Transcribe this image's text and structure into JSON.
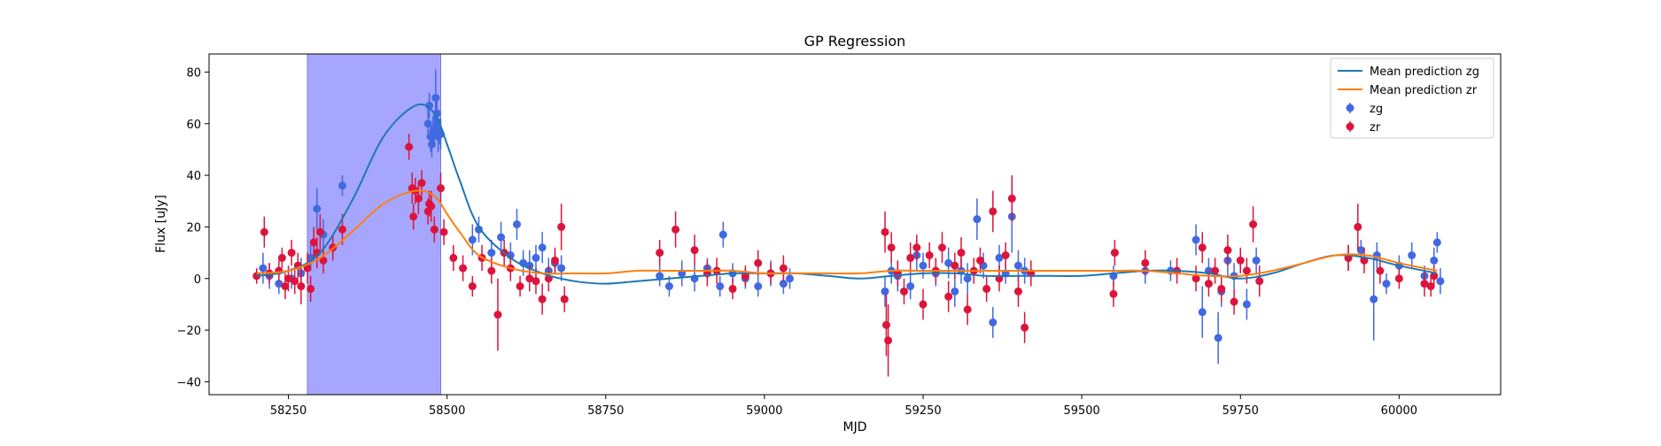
{
  "chart_data": {
    "type": "scatter",
    "title": "GP Regression",
    "xlabel": "MJD",
    "ylabel": "Flux [uJy]",
    "xlim": [
      58125,
      60160
    ],
    "ylim": [
      -45,
      87
    ],
    "x_ticks": [
      58250,
      58500,
      58750,
      59000,
      59250,
      59500,
      59750,
      60000
    ],
    "x_tick_labels": [
      "58250",
      "58500",
      "58750",
      "59000",
      "59250",
      "59500",
      "59750",
      "60000"
    ],
    "y_ticks": [
      -40,
      -20,
      0,
      20,
      40,
      60,
      80
    ],
    "y_tick_labels": [
      "−40",
      "−20",
      "0",
      "20",
      "40",
      "60",
      "80"
    ],
    "grid": false,
    "legend_position": "top-right",
    "shaded_region": {
      "x_start": 58280,
      "x_end": 58490,
      "color": "#a6a6ff"
    },
    "colors": {
      "mean_zg": "#1f77b4",
      "mean_zr": "#ff7f0e",
      "zg": "#4169e1",
      "zr": "#dc143c",
      "shade": "#a6a6ff"
    },
    "legend": [
      {
        "label": "Mean prediction zg",
        "kind": "line",
        "color": "#1f77b4"
      },
      {
        "label": "Mean prediction zr",
        "kind": "line",
        "color": "#ff7f0e"
      },
      {
        "label": "zg",
        "kind": "errorbar",
        "color": "#4169e1"
      },
      {
        "label": "zr",
        "kind": "errorbar",
        "color": "#dc143c"
      }
    ],
    "lines": [
      {
        "name": "Mean prediction zg",
        "color": "#1f77b4",
        "x": [
          58200,
          58250,
          58300,
          58350,
          58400,
          58450,
          58480,
          58500,
          58520,
          58550,
          58600,
          58650,
          58700,
          58750,
          58800,
          58850,
          58900,
          58950,
          59000,
          59050,
          59100,
          59150,
          59200,
          59250,
          59300,
          59350,
          59400,
          59450,
          59500,
          59550,
          59600,
          59650,
          59700,
          59750,
          59800,
          59850,
          59900,
          59950,
          60000,
          60060
        ],
        "y": [
          1,
          3,
          10,
          30,
          55,
          67,
          64,
          52,
          38,
          20,
          8,
          2,
          -1,
          -2,
          -1,
          0,
          1,
          2,
          2,
          2,
          1,
          0,
          1,
          2,
          2,
          1,
          1,
          1,
          1,
          2,
          3,
          3,
          2,
          0,
          2,
          6,
          9,
          8,
          5,
          2
        ]
      },
      {
        "name": "Mean prediction zr",
        "color": "#ff7f0e",
        "x": [
          58200,
          58250,
          58300,
          58350,
          58400,
          58450,
          58480,
          58500,
          58520,
          58550,
          58600,
          58650,
          58700,
          58750,
          58800,
          58850,
          58900,
          58950,
          59000,
          59050,
          59100,
          59150,
          59200,
          59250,
          59300,
          59350,
          59400,
          59450,
          59500,
          59550,
          59600,
          59650,
          59700,
          59750,
          59800,
          59850,
          59900,
          59950,
          60000,
          60060
        ],
        "y": [
          2,
          3,
          8,
          18,
          29,
          34,
          32,
          25,
          18,
          9,
          4,
          2,
          2,
          2,
          3,
          3,
          3,
          3,
          2,
          2,
          2,
          2,
          3,
          3,
          3,
          3,
          3,
          3,
          3,
          3,
          3,
          2,
          1,
          1,
          3,
          6,
          9,
          9,
          6,
          3
        ]
      }
    ],
    "series": [
      {
        "name": "zg",
        "color": "#4169e1",
        "points": [
          [
            58210,
            4,
            6
          ],
          [
            58220,
            1,
            5
          ],
          [
            58235,
            -2,
            4
          ],
          [
            58255,
            0,
            4
          ],
          [
            58270,
            2,
            6
          ],
          [
            58285,
            8,
            5
          ],
          [
            58295,
            27,
            8
          ],
          [
            58305,
            17,
            6
          ],
          [
            58320,
            12,
            5
          ],
          [
            58335,
            36,
            4
          ],
          [
            58470,
            60,
            6
          ],
          [
            58472,
            67,
            5
          ],
          [
            58474,
            55,
            6
          ],
          [
            58476,
            52,
            5
          ],
          [
            58478,
            57,
            6
          ],
          [
            58480,
            58,
            5
          ],
          [
            58482,
            70,
            11
          ],
          [
            58484,
            64,
            7
          ],
          [
            58486,
            55,
            6
          ],
          [
            58488,
            57,
            5
          ],
          [
            58490,
            56,
            6
          ],
          [
            58540,
            15,
            6
          ],
          [
            58550,
            19,
            5
          ],
          [
            58570,
            10,
            5
          ],
          [
            58585,
            16,
            6
          ],
          [
            58600,
            9,
            5
          ],
          [
            58610,
            21,
            6
          ],
          [
            58620,
            6,
            5
          ],
          [
            58630,
            5,
            6
          ],
          [
            58640,
            8,
            5
          ],
          [
            58650,
            12,
            6
          ],
          [
            58660,
            3,
            5
          ],
          [
            58670,
            6,
            4
          ],
          [
            58680,
            4,
            5
          ],
          [
            58835,
            1,
            4
          ],
          [
            58850,
            -3,
            4
          ],
          [
            58870,
            2,
            5
          ],
          [
            58890,
            0,
            5
          ],
          [
            58910,
            4,
            4
          ],
          [
            58930,
            -3,
            4
          ],
          [
            58935,
            17,
            5
          ],
          [
            58950,
            2,
            4
          ],
          [
            58970,
            0,
            4
          ],
          [
            58990,
            -3,
            4
          ],
          [
            59010,
            2,
            5
          ],
          [
            59030,
            -2,
            4
          ],
          [
            59040,
            0,
            4
          ],
          [
            59190,
            -5,
            6
          ],
          [
            59200,
            3,
            5
          ],
          [
            59210,
            1,
            6
          ],
          [
            59230,
            -3,
            5
          ],
          [
            59240,
            9,
            6
          ],
          [
            59250,
            5,
            5
          ],
          [
            59270,
            2,
            5
          ],
          [
            59290,
            6,
            6
          ],
          [
            59300,
            -5,
            6
          ],
          [
            59310,
            3,
            5
          ],
          [
            59320,
            0,
            6
          ],
          [
            59335,
            23,
            8
          ],
          [
            59345,
            5,
            5
          ],
          [
            59360,
            -17,
            6
          ],
          [
            59370,
            8,
            5
          ],
          [
            59380,
            2,
            4
          ],
          [
            59390,
            24,
            14
          ],
          [
            59400,
            5,
            6
          ],
          [
            59410,
            3,
            5
          ],
          [
            59550,
            1,
            4
          ],
          [
            59600,
            3,
            5
          ],
          [
            59640,
            3,
            4
          ],
          [
            59680,
            15,
            6
          ],
          [
            59690,
            -13,
            10
          ],
          [
            59700,
            3,
            5
          ],
          [
            59715,
            -23,
            10
          ],
          [
            59720,
            -5,
            6
          ],
          [
            59730,
            7,
            6
          ],
          [
            59740,
            1,
            5
          ],
          [
            59760,
            -10,
            6
          ],
          [
            59775,
            7,
            5
          ],
          [
            59920,
            8,
            5
          ],
          [
            59940,
            11,
            4
          ],
          [
            59960,
            -8,
            16
          ],
          [
            59965,
            9,
            5
          ],
          [
            59980,
            -2,
            4
          ],
          [
            60000,
            5,
            4
          ],
          [
            60020,
            9,
            5
          ],
          [
            60040,
            1,
            4
          ],
          [
            60055,
            7,
            5
          ],
          [
            60060,
            14,
            4
          ],
          [
            60065,
            -1,
            5
          ]
        ]
      },
      {
        "name": "zr",
        "color": "#dc143c",
        "points": [
          [
            58200,
            1,
            3
          ],
          [
            58212,
            18,
            6
          ],
          [
            58220,
            2,
            4
          ],
          [
            58235,
            3,
            4
          ],
          [
            58240,
            8,
            4
          ],
          [
            58245,
            -3,
            5
          ],
          [
            58250,
            0,
            5
          ],
          [
            58255,
            10,
            5
          ],
          [
            58260,
            -1,
            5
          ],
          [
            58265,
            5,
            5
          ],
          [
            58270,
            -3,
            7
          ],
          [
            58280,
            4,
            6
          ],
          [
            58285,
            -4,
            5
          ],
          [
            58290,
            14,
            6
          ],
          [
            58295,
            10,
            6
          ],
          [
            58300,
            18,
            7
          ],
          [
            58305,
            7,
            5
          ],
          [
            58320,
            12,
            5
          ],
          [
            58335,
            19,
            6
          ],
          [
            58440,
            51,
            5
          ],
          [
            58445,
            35,
            6
          ],
          [
            58447,
            24,
            5
          ],
          [
            58450,
            34,
            5
          ],
          [
            58455,
            31,
            6
          ],
          [
            58460,
            37,
            5
          ],
          [
            58470,
            26,
            5
          ],
          [
            58472,
            29,
            5
          ],
          [
            58475,
            28,
            6
          ],
          [
            58480,
            19,
            5
          ],
          [
            58490,
            35,
            6
          ],
          [
            58495,
            18,
            5
          ],
          [
            58510,
            8,
            5
          ],
          [
            58525,
            4,
            5
          ],
          [
            58540,
            -3,
            4
          ],
          [
            58555,
            8,
            5
          ],
          [
            58570,
            3,
            5
          ],
          [
            58580,
            -14,
            14
          ],
          [
            58590,
            10,
            5
          ],
          [
            58600,
            4,
            5
          ],
          [
            58615,
            -3,
            4
          ],
          [
            58630,
            0,
            5
          ],
          [
            58640,
            -1,
            5
          ],
          [
            58650,
            -8,
            6
          ],
          [
            58660,
            0,
            5
          ],
          [
            58670,
            7,
            5
          ],
          [
            58680,
            20,
            9
          ],
          [
            58685,
            -8,
            5
          ],
          [
            58835,
            10,
            5
          ],
          [
            58860,
            19,
            7
          ],
          [
            58890,
            11,
            6
          ],
          [
            58910,
            2,
            5
          ],
          [
            58925,
            3,
            5
          ],
          [
            58950,
            -4,
            4
          ],
          [
            58970,
            1,
            4
          ],
          [
            58990,
            6,
            5
          ],
          [
            59010,
            2,
            4
          ],
          [
            59030,
            4,
            5
          ],
          [
            59190,
            18,
            8
          ],
          [
            59192,
            -18,
            12
          ],
          [
            59195,
            -24,
            14
          ],
          [
            59200,
            12,
            6
          ],
          [
            59210,
            2,
            5
          ],
          [
            59220,
            -5,
            5
          ],
          [
            59230,
            8,
            6
          ],
          [
            59240,
            12,
            5
          ],
          [
            59250,
            -10,
            6
          ],
          [
            59260,
            9,
            5
          ],
          [
            59270,
            3,
            5
          ],
          [
            59280,
            12,
            6
          ],
          [
            59290,
            -7,
            6
          ],
          [
            59300,
            5,
            5
          ],
          [
            59310,
            10,
            6
          ],
          [
            59320,
            -12,
            6
          ],
          [
            59330,
            3,
            5
          ],
          [
            59340,
            7,
            5
          ],
          [
            59350,
            -4,
            5
          ],
          [
            59360,
            26,
            8
          ],
          [
            59370,
            0,
            5
          ],
          [
            59380,
            9,
            5
          ],
          [
            59390,
            31,
            9
          ],
          [
            59400,
            -5,
            6
          ],
          [
            59410,
            -19,
            6
          ],
          [
            59420,
            2,
            5
          ],
          [
            59550,
            -6,
            5
          ],
          [
            59552,
            10,
            5
          ],
          [
            59600,
            6,
            5
          ],
          [
            59650,
            3,
            5
          ],
          [
            59680,
            0,
            5
          ],
          [
            59690,
            12,
            6
          ],
          [
            59700,
            -2,
            5
          ],
          [
            59710,
            3,
            5
          ],
          [
            59720,
            -4,
            5
          ],
          [
            59730,
            11,
            6
          ],
          [
            59740,
            -9,
            5
          ],
          [
            59750,
            7,
            5
          ],
          [
            59760,
            3,
            5
          ],
          [
            59770,
            21,
            7
          ],
          [
            59780,
            -1,
            6
          ],
          [
            59920,
            8,
            5
          ],
          [
            59935,
            20,
            9
          ],
          [
            59945,
            7,
            5
          ],
          [
            59970,
            3,
            5
          ],
          [
            60000,
            0,
            4
          ],
          [
            60040,
            -2,
            5
          ],
          [
            60050,
            -3,
            4
          ],
          [
            60055,
            1,
            4
          ]
        ]
      }
    ]
  }
}
